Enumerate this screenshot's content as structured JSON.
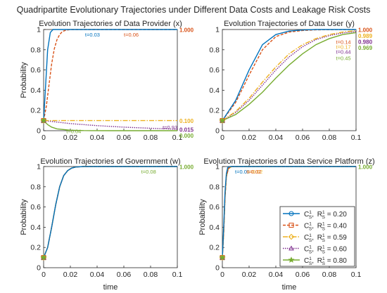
{
  "figure_title": "Quadripartite Evolutionary Trajectories under Different Data Costs and Leakage Risk Costs",
  "colors": {
    "s1": "#0072BD",
    "s2": "#D95319",
    "s3": "#EDB120",
    "s4": "#7E2F8E",
    "s5": "#77AC30",
    "axis": "#262626",
    "grid": "#e0e0e0"
  },
  "legend": {
    "entries": [
      {
        "c_main": "C",
        "c_sup": "1",
        "c_sub": "S",
        "r_main": "R",
        "r_sup": "1",
        "r_sub": "S",
        "value": "= 0.20"
      },
      {
        "c_main": "C",
        "c_sup": "1",
        "c_sub": "S",
        "r_main": "R",
        "r_sup": "1",
        "r_sub": "S",
        "value": "= 0.40"
      },
      {
        "c_main": "C",
        "c_sup": "1",
        "c_sub": "S",
        "r_main": "R",
        "r_sup": "1",
        "r_sub": "S",
        "value": "= 0.59"
      },
      {
        "c_main": "C",
        "c_sup": "1",
        "c_sub": "S",
        "r_main": "R",
        "r_sup": "1",
        "r_sub": "S",
        "value": "= 0.60"
      },
      {
        "c_main": "C",
        "c_sup": "1",
        "c_sub": "S",
        "r_main": "R",
        "r_sup": "1",
        "r_sub": "S",
        "value": "= 0.80"
      }
    ]
  },
  "chart_data": [
    {
      "type": "line",
      "title": "Evolution Trajectories of Data Provider (x)",
      "xlabel": "",
      "ylabel": "Probability",
      "xlim": [
        0,
        0.1
      ],
      "ylim": [
        0,
        1
      ],
      "xticks": [
        "0",
        "0.02",
        "0.04",
        "0.06",
        "0.08",
        "0.1"
      ],
      "yticks": [
        "0",
        "0.2",
        "0.4",
        "0.6",
        "0.8",
        "1"
      ],
      "series": [
        {
          "x": [
            0,
            0.0015,
            0.003,
            0.005,
            0.007,
            0.008,
            0.01,
            0.1
          ],
          "y": [
            0.1,
            0.45,
            0.8,
            0.97,
            1.0,
            1.0,
            1.0,
            1.0
          ]
        },
        {
          "x": [
            0,
            0.002,
            0.004,
            0.006,
            0.008,
            0.01,
            0.012,
            0.014,
            0.016,
            0.02,
            0.1
          ],
          "y": [
            0.1,
            0.24,
            0.45,
            0.66,
            0.81,
            0.9,
            0.95,
            0.98,
            0.99,
            1.0,
            1.0
          ]
        },
        {
          "x": [
            0,
            0.1
          ],
          "y": [
            0.1,
            0.1
          ]
        },
        {
          "x": [
            0,
            0.02,
            0.04,
            0.06,
            0.08,
            0.1
          ],
          "y": [
            0.1,
            0.07,
            0.05,
            0.035,
            0.024,
            0.015
          ]
        },
        {
          "x": [
            0,
            0.003,
            0.006,
            0.01,
            0.02,
            0.03,
            0.05,
            0.1
          ],
          "y": [
            0.1,
            0.06,
            0.035,
            0.018,
            0.005,
            0.001,
            0.0,
            0.0
          ]
        }
      ],
      "end_labels": [
        "1.000",
        "0.100",
        "0.015",
        "0.000"
      ],
      "annotations": [
        {
          "text": "t=0.03",
          "x": 0.031,
          "y": 0.95,
          "series": 0
        },
        {
          "text": "t=0.06",
          "x": 0.06,
          "y": 0.95,
          "series": 1
        },
        {
          "text": "t=0.93",
          "x": 0.089,
          "y": 0.035,
          "series": 3
        },
        {
          "text": "t=0.04",
          "x": 0.017,
          "y": -0.005,
          "series": 4
        }
      ]
    },
    {
      "type": "line",
      "title": "Evolution Trajectories of Data User (y)",
      "xlabel": "",
      "ylabel": "",
      "xlim": [
        0,
        0.1
      ],
      "ylim": [
        0,
        1
      ],
      "xticks": [
        "0",
        "0.02",
        "0.04",
        "0.06",
        "0.08",
        "0.1"
      ],
      "yticks": [
        "0",
        "0.2",
        "0.4",
        "0.6",
        "0.8",
        "1"
      ],
      "series": [
        {
          "x": [
            0,
            0.01,
            0.02,
            0.03,
            0.04,
            0.05,
            0.06,
            0.07,
            0.1
          ],
          "y": [
            0.1,
            0.3,
            0.6,
            0.85,
            0.95,
            0.985,
            0.995,
            1.0,
            1.0
          ]
        },
        {
          "x": [
            0,
            0.01,
            0.02,
            0.03,
            0.04,
            0.05,
            0.06,
            0.07,
            0.1
          ],
          "y": [
            0.1,
            0.28,
            0.55,
            0.8,
            0.93,
            0.975,
            0.99,
            0.997,
            1.0
          ]
        },
        {
          "x": [
            0,
            0.01,
            0.02,
            0.03,
            0.04,
            0.05,
            0.06,
            0.07,
            0.08,
            0.09,
            0.1
          ],
          "y": [
            0.1,
            0.19,
            0.32,
            0.48,
            0.63,
            0.76,
            0.85,
            0.91,
            0.95,
            0.975,
            0.989
          ]
        },
        {
          "x": [
            0,
            0.01,
            0.02,
            0.03,
            0.04,
            0.05,
            0.06,
            0.07,
            0.08,
            0.09,
            0.1
          ],
          "y": [
            0.1,
            0.18,
            0.3,
            0.45,
            0.6,
            0.73,
            0.83,
            0.9,
            0.94,
            0.965,
            0.98
          ]
        },
        {
          "x": [
            0,
            0.01,
            0.02,
            0.03,
            0.04,
            0.05,
            0.06,
            0.07,
            0.08,
            0.09,
            0.1
          ],
          "y": [
            0.1,
            0.16,
            0.26,
            0.38,
            0.52,
            0.65,
            0.76,
            0.85,
            0.91,
            0.95,
            0.969
          ]
        }
      ],
      "end_labels": [
        "1.000",
        "0.989",
        "0.980",
        "0.969"
      ],
      "annotations": [
        {
          "text": "t=0.14",
          "x": 0.085,
          "y": 0.88,
          "series": 1
        },
        {
          "text": "t=0.17",
          "x": 0.085,
          "y": 0.83,
          "series": 2
        },
        {
          "text": "t=0.44",
          "x": 0.085,
          "y": 0.78,
          "series": 3
        },
        {
          "text": "t=0.45",
          "x": 0.085,
          "y": 0.72,
          "series": 4
        }
      ]
    },
    {
      "type": "line",
      "title": "Evolution Trajectories of Government (w)",
      "xlabel": "time",
      "ylabel": "Probability",
      "xlim": [
        0,
        0.1
      ],
      "ylim": [
        0,
        1
      ],
      "xticks": [
        "0",
        "0.02",
        "0.04",
        "0.06",
        "0.08",
        "0.1"
      ],
      "yticks": [
        "0",
        "0.2",
        "0.4",
        "0.6",
        "0.8",
        "1"
      ],
      "series": [
        {
          "x": [
            0,
            0.003,
            0.006,
            0.009,
            0.012,
            0.015,
            0.018,
            0.021,
            0.024,
            0.03,
            0.1
          ],
          "y": [
            0.1,
            0.2,
            0.4,
            0.62,
            0.8,
            0.91,
            0.96,
            0.985,
            0.995,
            1.0,
            1.0
          ]
        },
        {
          "x": [
            0,
            0.003,
            0.006,
            0.009,
            0.012,
            0.015,
            0.018,
            0.021,
            0.024,
            0.03,
            0.1
          ],
          "y": [
            0.1,
            0.2,
            0.4,
            0.62,
            0.8,
            0.91,
            0.96,
            0.985,
            0.995,
            1.0,
            1.0
          ]
        },
        {
          "x": [
            0,
            0.003,
            0.006,
            0.009,
            0.012,
            0.015,
            0.018,
            0.021,
            0.024,
            0.03,
            0.1
          ],
          "y": [
            0.1,
            0.2,
            0.4,
            0.62,
            0.8,
            0.91,
            0.96,
            0.985,
            0.995,
            1.0,
            1.0
          ]
        },
        {
          "x": [
            0,
            0.003,
            0.006,
            0.009,
            0.012,
            0.015,
            0.018,
            0.021,
            0.024,
            0.03,
            0.1
          ],
          "y": [
            0.1,
            0.2,
            0.4,
            0.62,
            0.8,
            0.91,
            0.96,
            0.985,
            0.995,
            1.0,
            1.0
          ]
        },
        {
          "x": [
            0,
            0.003,
            0.006,
            0.009,
            0.012,
            0.015,
            0.018,
            0.021,
            0.024,
            0.03,
            0.1
          ],
          "y": [
            0.1,
            0.2,
            0.4,
            0.62,
            0.8,
            0.91,
            0.96,
            0.985,
            0.995,
            1.0,
            1.0
          ]
        }
      ],
      "end_labels": [
        "1.000"
      ],
      "annotations": [
        {
          "text": "t=0.08",
          "x": 0.073,
          "y": 0.95,
          "series": 4
        }
      ]
    },
    {
      "type": "line",
      "title": "Evolution Trajectories of Data Service Platform (z)",
      "xlabel": "time",
      "ylabel": "Probability",
      "xlim": [
        0,
        0.1
      ],
      "ylim": [
        0,
        1
      ],
      "xticks": [
        "0",
        "0.02",
        "0.04",
        "0.06",
        "0.08",
        "0.1"
      ],
      "yticks": [
        "0",
        "0.2",
        "0.4",
        "0.6",
        "0.8",
        "1"
      ],
      "series": [
        {
          "x": [
            0,
            0.001,
            0.002,
            0.003,
            0.004,
            0.006,
            0.1
          ],
          "y": [
            0.1,
            0.4,
            0.75,
            0.93,
            0.99,
            1.0,
            1.0
          ]
        },
        {
          "x": [
            0,
            0.001,
            0.002,
            0.003,
            0.0045,
            0.007,
            0.1
          ],
          "y": [
            0.1,
            0.35,
            0.7,
            0.9,
            0.98,
            1.0,
            1.0
          ]
        },
        {
          "x": [
            0,
            0.001,
            0.002,
            0.003,
            0.0045,
            0.007,
            0.1
          ],
          "y": [
            0.1,
            0.35,
            0.7,
            0.9,
            0.98,
            1.0,
            1.0
          ]
        },
        {
          "x": [
            0,
            0.001,
            0.002,
            0.003,
            0.0045,
            0.007,
            0.1
          ],
          "y": [
            0.1,
            0.35,
            0.7,
            0.9,
            0.98,
            1.0,
            1.0
          ]
        },
        {
          "x": [
            0,
            0.001,
            0.002,
            0.003,
            0.0045,
            0.007,
            0.1
          ],
          "y": [
            0.1,
            0.35,
            0.7,
            0.9,
            0.98,
            1.0,
            1.0
          ]
        }
      ],
      "end_labels": [
        "1.000"
      ],
      "annotations": [
        {
          "text": "t=0.01",
          "x": 0.0095,
          "y": 0.95,
          "series": 0
        },
        {
          "text": "t=0.02",
          "x": 0.019,
          "y": 0.95,
          "series": 2
        },
        {
          "text": "t=0.02",
          "x": 0.018,
          "y": 0.95,
          "series": 1
        }
      ]
    }
  ]
}
